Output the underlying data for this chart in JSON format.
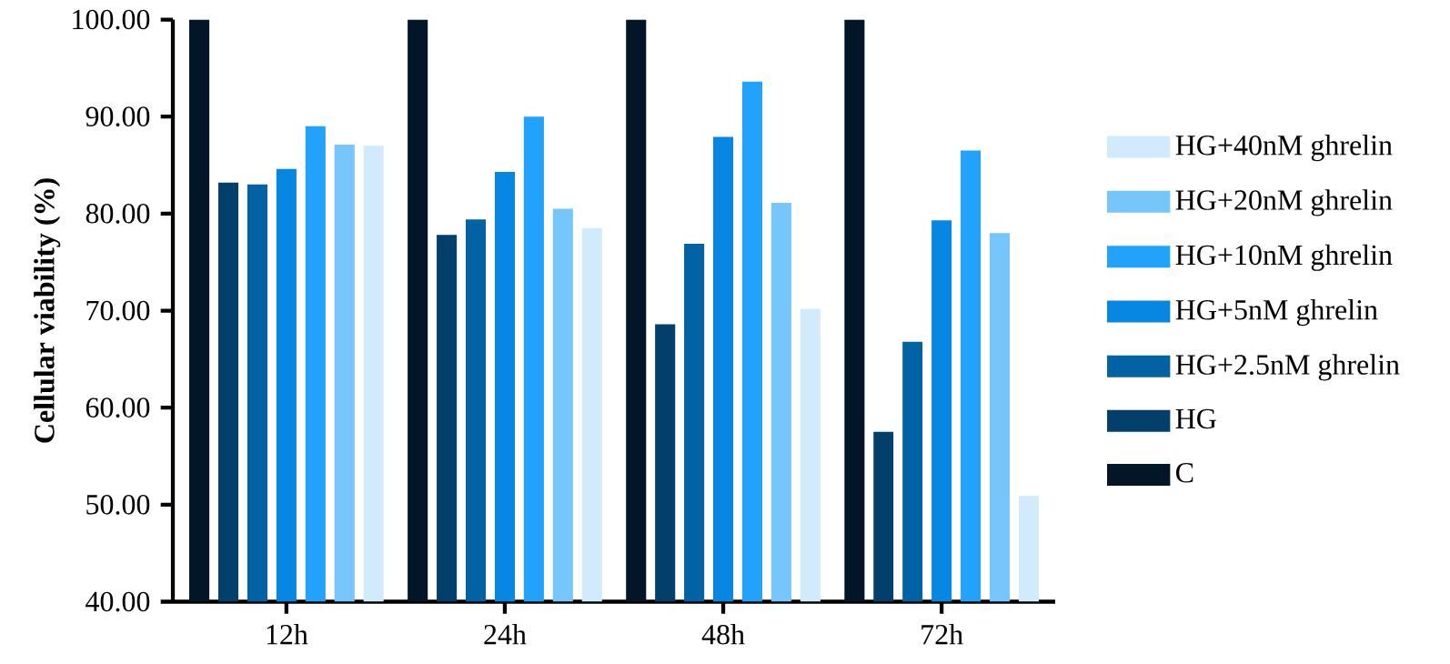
{
  "chart_data": {
    "type": "bar",
    "ylabel": "Cellular viability (%)",
    "categories": [
      "12h",
      "24h",
      "48h",
      "72h"
    ],
    "series": [
      {
        "name": "C",
        "color": "#021627",
        "values": [
          100,
          100,
          100,
          100
        ]
      },
      {
        "name": "HG",
        "color": "#033f6b",
        "values": [
          83.2,
          77.8,
          68.6,
          57.5
        ]
      },
      {
        "name": "HG+2.5nM ghrelin",
        "color": "#0262a4",
        "values": [
          83.0,
          79.4,
          76.9,
          66.8
        ]
      },
      {
        "name": "HG+5nM ghrelin",
        "color": "#0787e2",
        "values": [
          84.6,
          84.3,
          87.9,
          79.3
        ]
      },
      {
        "name": "HG+10nM ghrelin",
        "color": "#22a2fa",
        "values": [
          89.0,
          90.0,
          93.6,
          86.5
        ]
      },
      {
        "name": "HG+20nM ghrelin",
        "color": "#76c6fc",
        "values": [
          87.1,
          80.5,
          81.1,
          78.0
        ]
      },
      {
        "name": "HG+40nM ghrelin",
        "color": "#d1ebfd",
        "values": [
          87.0,
          78.5,
          70.2,
          50.9
        ]
      }
    ],
    "ylim": [
      40,
      100
    ],
    "yticks": [
      {
        "value": 40,
        "label": "40.00"
      },
      {
        "value": 50,
        "label": "50.00"
      },
      {
        "value": 60,
        "label": "60.00"
      },
      {
        "value": 70,
        "label": "70.00"
      },
      {
        "value": 80,
        "label": "80.00"
      },
      {
        "value": 90,
        "label": "90.00"
      },
      {
        "value": 100,
        "label": "100.00"
      }
    ],
    "grid": false,
    "legend": "right"
  }
}
